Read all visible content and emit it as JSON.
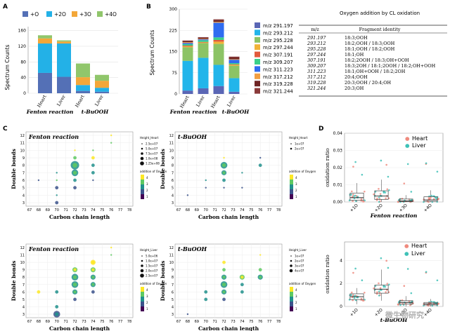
{
  "colors": {
    "o1": "#5470b6",
    "o2": "#23b1e7",
    "o3": "#f3a739",
    "o4": "#90c66b",
    "mz291": "#5a66b5",
    "mz293": "#22b5ea",
    "mz295": "#8cc365",
    "mz297": "#f0b337",
    "mz307": "#e25a3c",
    "mz309": "#3ad08a",
    "mz311": "#2f6cf0",
    "mz317": "#f29f42",
    "mz319": "#6e2424",
    "mz321": "#8a3a3a",
    "heart": "#ef8a7e",
    "liver": "#3fc1b7",
    "viridis": [
      "#fde725",
      "#5ec962",
      "#21918c",
      "#3b528b",
      "#440154"
    ]
  },
  "panelA": {
    "letter": "A",
    "chart_data": {
      "type": "bar",
      "stacked": true,
      "categories": [
        "Heart",
        "Liver",
        "Heart",
        "Liver"
      ],
      "groups": [
        "Fenton reaction",
        "t-BuOOH"
      ],
      "ylabel": "Spectrum Counts",
      "ylim": [
        0,
        170
      ],
      "yticks": [
        "0",
        "40",
        "80",
        "120",
        "160"
      ],
      "legend": [
        "+O",
        "+2O",
        "+3O",
        "+4O"
      ],
      "series": [
        {
          "name": "+O",
          "values": [
            52,
            42,
            6,
            4
          ]
        },
        {
          "name": "+2O",
          "values": [
            75,
            85,
            15,
            10
          ]
        },
        {
          "name": "+3O",
          "values": [
            13,
            5,
            20,
            18
          ]
        },
        {
          "name": "+4O",
          "values": [
            8,
            3,
            35,
            15
          ]
        }
      ]
    }
  },
  "panelB": {
    "letter": "B",
    "chart_data": {
      "type": "bar",
      "stacked": true,
      "categories": [
        "Heart",
        "Liver",
        "Heart",
        "Liver"
      ],
      "groups": [
        "Fenton reaction",
        "t-BuOOH"
      ],
      "ylabel": "Spectrum Counts",
      "ylim": [
        0,
        300
      ],
      "yticks": [
        "0",
        "75",
        "150",
        "225",
        "300"
      ],
      "series": [
        {
          "name": "m/z 291.197",
          "values": [
            12,
            20,
            28,
            8
          ]
        },
        {
          "name": "m/z 293.212",
          "values": [
            105,
            108,
            75,
            48
          ]
        },
        {
          "name": "m/z 295.228",
          "values": [
            48,
            52,
            74,
            44
          ]
        },
        {
          "name": "m/z 297.244",
          "values": [
            3,
            2,
            8,
            3
          ]
        },
        {
          "name": "m/z 307.191",
          "values": [
            3,
            2,
            6,
            2
          ]
        },
        {
          "name": "m/z 309.207",
          "values": [
            5,
            6,
            9,
            4
          ]
        },
        {
          "name": "m/z 311.223",
          "values": [
            4,
            3,
            52,
            12
          ]
        },
        {
          "name": "m/z 317.212",
          "values": [
            3,
            2,
            3,
            2
          ]
        },
        {
          "name": "m/z 319.228",
          "values": [
            4,
            4,
            6,
            6
          ]
        },
        {
          "name": "m/z 321.244",
          "values": [
            2,
            2,
            3,
            3
          ]
        }
      ]
    },
    "table": {
      "title": "Oxygen addition by CL oxidation",
      "headers": [
        "m/z",
        "Fragment identity"
      ],
      "rows": [
        [
          "291.197",
          "18:3;OOH"
        ],
        [
          "293.212",
          "18:2;OOH / 18:3;OOH"
        ],
        [
          "295.228",
          "18:1;OOH / 18:2;OOH"
        ],
        [
          "297.244",
          "18:1;OH"
        ],
        [
          "307.191",
          "18:2;2OOH / 18:3;OH+OOH"
        ],
        [
          "309.207",
          "18:3;2OH / 18:1;2OOH / 18:2;OH+OOH"
        ],
        [
          "311.223",
          "18:1;OH+OOH / 18:2;2OH"
        ],
        [
          "317.212",
          "20:4;OOH"
        ],
        [
          "319.228",
          "20:3;OOH / 20:4;OH"
        ],
        [
          "321.244",
          "20:3;OH"
        ]
      ]
    }
  },
  "panelC": {
    "letter": "C",
    "xlabel": "Carbon chain length",
    "ylabel": "Double bonds",
    "xticks": [
      "67",
      "68",
      "69",
      "70",
      "71",
      "72",
      "73",
      "74",
      "75",
      "76",
      "77",
      "78"
    ],
    "yticks": [
      "3",
      "4",
      "5",
      "6",
      "7",
      "8",
      "9",
      "10",
      "11",
      "12"
    ],
    "oxygen_title": "addition of Oxygen",
    "oxygen_levels": [
      "4",
      "3",
      "2",
      "1"
    ],
    "plots": [
      {
        "title": "Fenton reaction",
        "size_title": "Height_Heart",
        "size_labels": [
          "2.5e+07",
          "5.0e+07",
          "7.5e+07",
          "1.0e+08",
          "1.25e+08"
        ],
        "points": [
          [
            68,
            6,
            1,
            0
          ],
          [
            70,
            3,
            1,
            1
          ],
          [
            70,
            4,
            2,
            0
          ],
          [
            70,
            5,
            1,
            1
          ],
          [
            70,
            6,
            3,
            0
          ],
          [
            70,
            7,
            2,
            0
          ],
          [
            72,
            5,
            1,
            1
          ],
          [
            72,
            6,
            2,
            1
          ],
          [
            72,
            7,
            2,
            3
          ],
          [
            72,
            8,
            2,
            4
          ],
          [
            72,
            9,
            3,
            1
          ],
          [
            72,
            10,
            4,
            0
          ],
          [
            74,
            6,
            1,
            0
          ],
          [
            74,
            7,
            2,
            1
          ],
          [
            74,
            8,
            2,
            1
          ],
          [
            74,
            9,
            4,
            1
          ],
          [
            74,
            10,
            3,
            0
          ],
          [
            76,
            11,
            3,
            0
          ],
          [
            76,
            12,
            4,
            0
          ]
        ]
      },
      {
        "title": "t-BuOOH",
        "size_title": "Height_Heart",
        "size_labels": [
          "1e+07",
          "2e+07"
        ],
        "points": [
          [
            68,
            4,
            1,
            0
          ],
          [
            70,
            5,
            1,
            0
          ],
          [
            70,
            6,
            2,
            0
          ],
          [
            72,
            5,
            1,
            0
          ],
          [
            72,
            6,
            2,
            1
          ],
          [
            72,
            7,
            2,
            2
          ],
          [
            72,
            8,
            2,
            3
          ],
          [
            72,
            9,
            4,
            0
          ],
          [
            74,
            5,
            1,
            0
          ],
          [
            74,
            7,
            2,
            0
          ],
          [
            76,
            8,
            2,
            1
          ],
          [
            76,
            9,
            1,
            0
          ]
        ]
      },
      {
        "title": "Fenton reaction",
        "size_title": "Height_Liver",
        "size_labels": [
          "5.0e+06",
          "1.0e+07",
          "1.5e+07",
          "2.0e+07",
          "2.5e+07"
        ],
        "points": [
          [
            68,
            6,
            4,
            1
          ],
          [
            70,
            3,
            1,
            3
          ],
          [
            70,
            4,
            2,
            1
          ],
          [
            70,
            6,
            2,
            1
          ],
          [
            72,
            5,
            1,
            1
          ],
          [
            72,
            6,
            2,
            2
          ],
          [
            72,
            7,
            2,
            3
          ],
          [
            72,
            8,
            2,
            3
          ],
          [
            72,
            9,
            3,
            2
          ],
          [
            74,
            6,
            1,
            1
          ],
          [
            74,
            7,
            2,
            2
          ],
          [
            74,
            8,
            2,
            2
          ],
          [
            74,
            9,
            3,
            2
          ],
          [
            74,
            10,
            4,
            2
          ],
          [
            76,
            11,
            3,
            0
          ],
          [
            76,
            12,
            4,
            0
          ]
        ]
      },
      {
        "title": "t-BuOOH",
        "size_title": "Height_Liver",
        "size_labels": [
          "1e+07",
          "2e+07",
          "3e+07",
          "4e+07"
        ],
        "points": [
          [
            68,
            3,
            1,
            0
          ],
          [
            70,
            5,
            2,
            1
          ],
          [
            70,
            6,
            2,
            1
          ],
          [
            72,
            5,
            1,
            1
          ],
          [
            72,
            6,
            2,
            2
          ],
          [
            72,
            7,
            2,
            3
          ],
          [
            72,
            8,
            2,
            2
          ],
          [
            72,
            9,
            3,
            1
          ],
          [
            72,
            10,
            4,
            1
          ],
          [
            74,
            6,
            2,
            1
          ],
          [
            74,
            7,
            2,
            1
          ],
          [
            74,
            8,
            3,
            2
          ],
          [
            76,
            8,
            2,
            2
          ],
          [
            76,
            9,
            3,
            1
          ],
          [
            76,
            11,
            4,
            0
          ]
        ]
      }
    ]
  },
  "panelD": {
    "letter": "D",
    "legend": [
      "Heart",
      "Liver"
    ],
    "ylabel": "oxidation ratio",
    "categories": [
      "+1O",
      "+2O",
      "+3O",
      "+4O"
    ],
    "top": {
      "title": "Fenton reaction",
      "ylim": [
        0,
        0.04
      ],
      "yticks": [
        "0.00",
        "0.01",
        "0.02",
        "0.03",
        "0.04"
      ],
      "boxes": [
        [
          0,
          0.001,
          0.0025,
          0.0052,
          0.011
        ],
        [
          0,
          0.0015,
          0.0035,
          0.0065,
          0.013
        ],
        [
          0,
          0.0002,
          0.0006,
          0.0017,
          0.004
        ],
        [
          0,
          0.0004,
          0.0012,
          0.003,
          0.0068
        ]
      ]
    },
    "bottom": {
      "title": "t-BuOOH",
      "ylim": [
        0,
        5.6
      ],
      "yticks": [
        "0",
        "2",
        "4"
      ],
      "boxes": [
        [
          0.2,
          0.6,
          0.85,
          1.1,
          1.6
        ],
        [
          0.5,
          1.15,
          1.5,
          1.85,
          3.2
        ],
        [
          0,
          0.2,
          0.35,
          0.5,
          0.9
        ],
        [
          0,
          0.12,
          0.22,
          0.35,
          0.65
        ]
      ]
    }
  },
  "watermark": "微生物研究"
}
